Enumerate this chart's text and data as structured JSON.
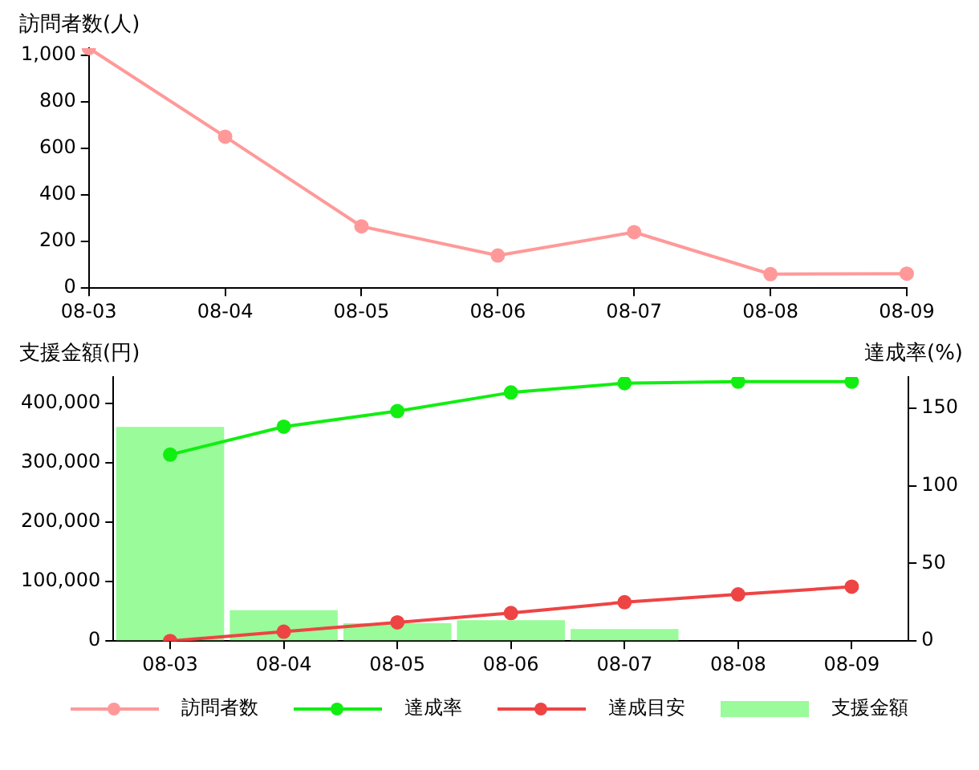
{
  "chart_data": [
    {
      "type": "line",
      "ylabel": "訪問者数(人)",
      "categories": [
        "08-03",
        "08-04",
        "08-05",
        "08-06",
        "08-07",
        "08-08",
        "08-09"
      ],
      "series": [
        {
          "name": "訪問者数",
          "color": "#ff9999",
          "values": [
            1030,
            650,
            265,
            140,
            240,
            60,
            62
          ]
        }
      ],
      "ylim": [
        0,
        1030
      ],
      "yticks": [
        0,
        200,
        400,
        600,
        800,
        {
          "value": 1000,
          "label": "1,000"
        }
      ],
      "grid": false,
      "marker": "circle",
      "legend": "bottom"
    },
    {
      "type": "bar",
      "ylabel": "支援金額(円)",
      "y2label": "達成率(%)",
      "categories": [
        "08-03",
        "08-04",
        "08-05",
        "08-06",
        "08-07",
        "08-08",
        "08-09"
      ],
      "series": [
        {
          "name": "達成率",
          "type": "line",
          "axis": "y2",
          "color": "#11ee11",
          "values": [
            120,
            138,
            148,
            160,
            166,
            167,
            167
          ]
        },
        {
          "name": "達成目安",
          "type": "line",
          "axis": "y2",
          "color": "#ee4444",
          "values": [
            0,
            6,
            12,
            18,
            25,
            30,
            35
          ]
        },
        {
          "name": "支援金額",
          "type": "bar",
          "color": "#99fb99",
          "values": [
            360000,
            52000,
            30000,
            35000,
            20000,
            null,
            0
          ]
        }
      ],
      "ylim": [
        0,
        444000
      ],
      "yticks": [
        0,
        {
          "value": 100000,
          "label": "100,000"
        },
        {
          "value": 200000,
          "label": "200,000"
        },
        {
          "value": 300000,
          "label": "300,000"
        },
        {
          "value": 400000,
          "label": "400,000"
        }
      ],
      "y2lim": [
        0,
        170
      ],
      "y2ticks": [
        0,
        50,
        100,
        150
      ],
      "grid": false,
      "marker": "circle",
      "legend": "bottom"
    }
  ]
}
